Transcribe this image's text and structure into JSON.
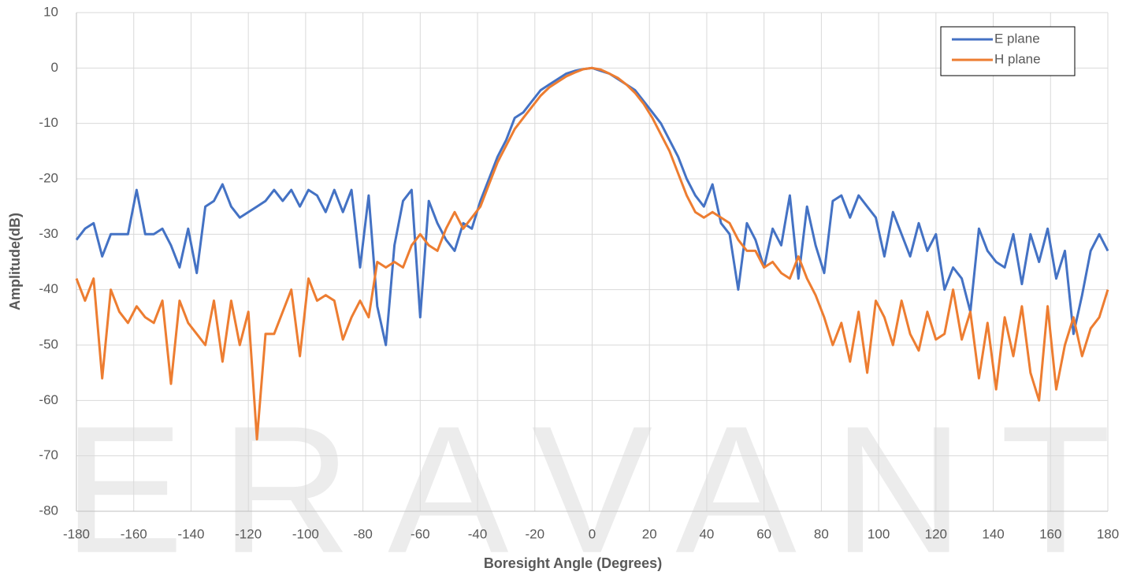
{
  "chart_data": {
    "type": "line",
    "watermark": "ERAVANT",
    "xlabel": "Boresight Angle (Degrees)",
    "ylabel": "Amplitude(dB)",
    "x": [
      -180,
      -177,
      -174,
      -171,
      -168,
      -165,
      -162,
      -159,
      -156,
      -153,
      -150,
      -147,
      -144,
      -141,
      -138,
      -135,
      -132,
      -129,
      -126,
      -123,
      -120,
      -117,
      -114,
      -111,
      -108,
      -105,
      -102,
      -99,
      -96,
      -93,
      -90,
      -87,
      -84,
      -81,
      -78,
      -75,
      -72,
      -69,
      -66,
      -63,
      -60,
      -57,
      -54,
      -51,
      -48,
      -45,
      -42,
      -39,
      -36,
      -33,
      -30,
      -27,
      -24,
      -21,
      -18,
      -15,
      -12,
      -9,
      -6,
      -3,
      0,
      3,
      6,
      9,
      12,
      15,
      18,
      21,
      24,
      27,
      30,
      33,
      36,
      39,
      42,
      45,
      48,
      51,
      54,
      57,
      60,
      63,
      66,
      69,
      72,
      75,
      78,
      81,
      84,
      87,
      90,
      93,
      96,
      99,
      102,
      105,
      108,
      111,
      114,
      117,
      120,
      123,
      126,
      129,
      132,
      135,
      138,
      141,
      144,
      147,
      150,
      153,
      156,
      159,
      162,
      165,
      168,
      171,
      174,
      177,
      180
    ],
    "series": [
      {
        "name": "E plane",
        "color": "#4472c4",
        "values": [
          -31,
          -29,
          -28,
          -34,
          -30,
          -30,
          -30,
          -22,
          -30,
          -30,
          -29,
          -32,
          -36,
          -29,
          -37,
          -25,
          -24,
          -21,
          -25,
          -27,
          -26,
          -25,
          -24,
          -22,
          -24,
          -22,
          -25,
          -22,
          -23,
          -26,
          -22,
          -26,
          -22,
          -36,
          -23,
          -43,
          -50,
          -32,
          -24,
          -22,
          -45,
          -24,
          -28,
          -31,
          -33,
          -28,
          -29,
          -24,
          -20,
          -16,
          -13,
          -9,
          -8,
          -6,
          -4,
          -3,
          -2,
          -1,
          -0.5,
          -0.2,
          0,
          -0.5,
          -1,
          -2,
          -3,
          -4,
          -6,
          -8,
          -10,
          -13,
          -16,
          -20,
          -23,
          -25,
          -21,
          -28,
          -30,
          -40,
          -28,
          -31,
          -36,
          -29,
          -32,
          -23,
          -38,
          -25,
          -32,
          -37,
          -24,
          -23,
          -27,
          -23,
          -25,
          -27,
          -34,
          -26,
          -30,
          -34,
          -28,
          -33,
          -30,
          -40,
          -36,
          -38,
          -44,
          -29,
          -33,
          -35,
          -36,
          -30,
          -39,
          -30,
          -35,
          -29,
          -38,
          -33,
          -48,
          -41,
          -33,
          -30,
          -33
        ]
      },
      {
        "name": "H plane",
        "color": "#ed7d31",
        "values": [
          -38,
          -42,
          -38,
          -56,
          -40,
          -44,
          -46,
          -43,
          -45,
          -46,
          -42,
          -57,
          -42,
          -46,
          -48,
          -50,
          -42,
          -53,
          -42,
          -50,
          -44,
          -67,
          -48,
          -48,
          -44,
          -40,
          -52,
          -38,
          -42,
          -41,
          -42,
          -49,
          -45,
          -42,
          -45,
          -35,
          -36,
          -35,
          -36,
          -32,
          -30,
          -32,
          -33,
          -29,
          -26,
          -29,
          -27,
          -25,
          -21,
          -17,
          -14,
          -11,
          -9,
          -7,
          -5,
          -3.5,
          -2.5,
          -1.5,
          -0.8,
          -0.2,
          0,
          -0.3,
          -1,
          -1.8,
          -3,
          -4.5,
          -6.5,
          -9,
          -12,
          -15,
          -19,
          -23,
          -26,
          -27,
          -26,
          -27,
          -28,
          -31,
          -33,
          -33,
          -36,
          -35,
          -37,
          -38,
          -34,
          -38,
          -41,
          -45,
          -50,
          -46,
          -53,
          -44,
          -55,
          -42,
          -45,
          -50,
          -42,
          -48,
          -51,
          -44,
          -49,
          -48,
          -40,
          -49,
          -44,
          -56,
          -46,
          -58,
          -45,
          -52,
          -43,
          -55,
          -60,
          -43,
          -58,
          -50,
          -45,
          -52,
          -47,
          -45,
          -40
        ]
      }
    ],
    "xlim": [
      -180,
      180
    ],
    "xticks": [
      -180,
      -160,
      -140,
      -120,
      -100,
      -80,
      -60,
      -40,
      -20,
      0,
      20,
      40,
      60,
      80,
      100,
      120,
      140,
      160,
      180
    ],
    "ylim": [
      -80,
      10
    ],
    "yticks": [
      10,
      0,
      -10,
      -20,
      -30,
      -40,
      -50,
      -60,
      -70,
      -80
    ],
    "grid": true,
    "legend": "upper right"
  }
}
